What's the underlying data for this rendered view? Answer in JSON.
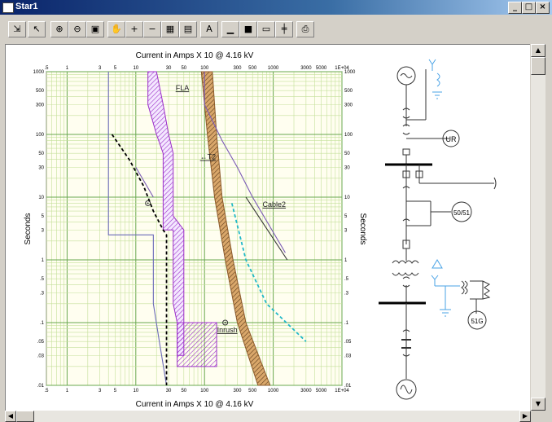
{
  "window": {
    "title": "Star1",
    "buttons": {
      "minimize": "_",
      "maximize": "□",
      "close": "×"
    }
  },
  "toolbar": {
    "icons": [
      "select-tool-icon",
      "pointer-icon",
      "zoom-in-icon",
      "zoom-out-icon",
      "fit-icon",
      "pan-icon",
      "zoom-in-small-icon",
      "zoom-out-small-icon",
      "zoom-window-icon",
      "zoom-previous-icon",
      "text-tool-icon",
      "ruler-icon",
      "device-green-icon",
      "device-blank-icon",
      "device-red-icon",
      "print-preview-icon"
    ],
    "glyphs": [
      "⇲",
      "↖",
      "⊕",
      "⊖",
      "▣",
      "✋",
      "+",
      "−",
      "▦",
      "▤",
      "A",
      "▁",
      "■",
      "▭",
      "╪",
      "⎙"
    ]
  },
  "chart": {
    "x_axis_label": "Current in Amps X 10 @ 4.16 kV",
    "y_axis_label_left": "Seconds",
    "y_axis_label_right": "Seconds",
    "x_ticks": [
      ".5",
      "1",
      "3",
      "5",
      "10",
      "30",
      "50",
      "100",
      "300",
      "500",
      "1000",
      "3000",
      "5000",
      "1E+04"
    ],
    "y_ticks": [
      "1000",
      "500",
      "300",
      "100",
      "50",
      "30",
      "10",
      "5",
      "3",
      "1",
      ".5",
      ".3",
      ".1",
      ".05",
      ".03",
      ".01"
    ],
    "annotations": [
      "FLA",
      "T2",
      "Cable2",
      "Inrush"
    ]
  },
  "chart_data": {
    "type": "line",
    "scale": "log-log",
    "xlim": [
      0.5,
      10000
    ],
    "ylim": [
      0.01,
      1000
    ],
    "xlabel": "Current in Amps X 10 @ 4.16 kV",
    "ylabel": "Seconds",
    "grid": true,
    "series": [
      {
        "name": "relay-blue-left",
        "color": "#6a6ab8",
        "style": "solid",
        "points": [
          [
            4,
            1000
          ],
          [
            4,
            2.5
          ],
          [
            18,
            2.5
          ],
          [
            18,
            0.2
          ],
          [
            22,
            0.05
          ],
          [
            28,
            0.01
          ]
        ]
      },
      {
        "name": "relay-black-dashed",
        "color": "#000000",
        "style": "dashed",
        "points": [
          [
            4.5,
            100
          ],
          [
            8,
            40
          ],
          [
            13,
            15
          ],
          [
            18,
            6
          ],
          [
            25,
            3
          ],
          [
            28,
            2.5
          ],
          [
            28,
            0.01
          ]
        ]
      },
      {
        "name": "T2",
        "color": "#7a5ab5",
        "style": "solid",
        "points": [
          [
            100,
            1000
          ],
          [
            100,
            300
          ],
          [
            180,
            80
          ],
          [
            300,
            30
          ],
          [
            500,
            10
          ],
          [
            1500,
            1.3
          ]
        ]
      },
      {
        "name": "Cable2",
        "color": "#333333",
        "style": "solid",
        "points": [
          [
            400,
            10
          ],
          [
            1600,
            1
          ]
        ]
      },
      {
        "name": "cyan-dashed",
        "color": "#20b8c8",
        "style": "dashed",
        "points": [
          [
            250,
            8
          ],
          [
            400,
            1
          ],
          [
            800,
            0.2
          ],
          [
            3000,
            0.05
          ]
        ]
      },
      {
        "name": "small-purple",
        "color": "#7a5ab5",
        "style": "solid",
        "points": [
          [
            10,
            30
          ],
          [
            18,
            10
          ]
        ]
      }
    ],
    "bands": [
      {
        "name": "purple-hatched",
        "color": "#9b30c8",
        "left": [
          [
            15,
            1000
          ],
          [
            15,
            300
          ],
          [
            20,
            100
          ],
          [
            25,
            50
          ],
          [
            25,
            3
          ],
          [
            35,
            3
          ],
          [
            35,
            0.2
          ],
          [
            40,
            0.1
          ],
          [
            40,
            0.03
          ]
        ],
        "right": [
          [
            20,
            1000
          ],
          [
            25,
            300
          ],
          [
            30,
            100
          ],
          [
            35,
            50
          ],
          [
            35,
            5
          ],
          [
            50,
            3
          ],
          [
            50,
            0.03
          ]
        ]
      },
      {
        "name": "brown-hatched",
        "color": "#8b5a2b",
        "left": [
          [
            90,
            1000
          ],
          [
            110,
            100
          ],
          [
            140,
            10
          ],
          [
            200,
            1
          ],
          [
            300,
            0.1
          ],
          [
            600,
            0.01
          ]
        ],
        "right": [
          [
            130,
            1000
          ],
          [
            150,
            100
          ],
          [
            180,
            10
          ],
          [
            260,
            1
          ],
          [
            400,
            0.1
          ],
          [
            900,
            0.01
          ]
        ]
      },
      {
        "name": "inrush-box",
        "color": "#9b30c8",
        "left": [
          [
            40,
            0.1
          ],
          [
            40,
            0.02
          ]
        ],
        "right": [
          [
            150,
            0.1
          ],
          [
            150,
            0.02
          ]
        ]
      }
    ],
    "points": [
      {
        "x": 15,
        "y": 8,
        "marker": "circle-dot"
      },
      {
        "x": 200,
        "y": 0.1,
        "marker": "circle-dot",
        "label": "Inrush"
      }
    ]
  },
  "diagram": {
    "labels": [
      "UR",
      "50/51",
      "51G"
    ]
  }
}
